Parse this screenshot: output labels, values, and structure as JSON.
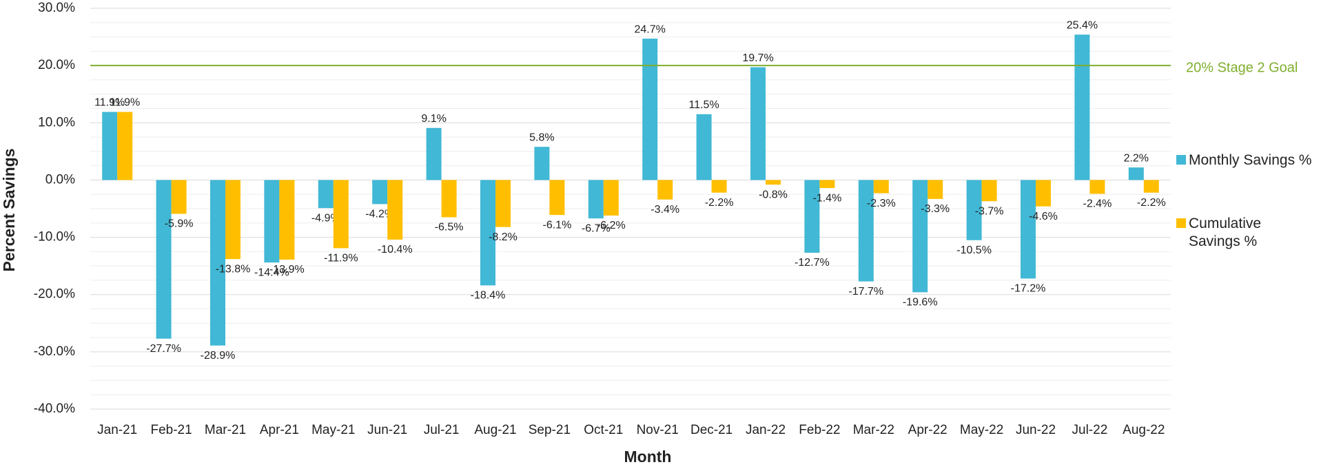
{
  "chart_data": {
    "type": "bar",
    "x_label": "Month",
    "y_label": "Percent Savings",
    "categories": [
      "Jan-21",
      "Feb-21",
      "Mar-21",
      "Apr-21",
      "May-21",
      "Jun-21",
      "Jul-21",
      "Aug-21",
      "Sep-21",
      "Oct-21",
      "Nov-21",
      "Dec-21",
      "Jan-22",
      "Feb-22",
      "Mar-22",
      "Apr-22",
      "May-22",
      "Jun-22",
      "Jul-22",
      "Aug-22"
    ],
    "series": [
      {
        "name": "Monthly Savings %",
        "color": "#41b8d5",
        "values": [
          11.9,
          -27.7,
          -28.9,
          -14.4,
          -4.9,
          -4.2,
          9.1,
          -18.4,
          5.8,
          -6.7,
          24.7,
          11.5,
          19.7,
          -12.7,
          -17.7,
          -19.6,
          -10.5,
          -17.2,
          25.4,
          2.2
        ],
        "value_labels": [
          "11.9%",
          "-27.7%",
          "-28.9%",
          "-14.4%",
          "-4.9%",
          "-4.2%",
          "9.1%",
          "-18.4%",
          "5.8%",
          "-6.7%",
          "24.7%",
          "11.5%",
          "19.7%",
          "-12.7%",
          "-17.7%",
          "-19.6%",
          "-10.5%",
          "-17.2%",
          "25.4%",
          "2.2%"
        ]
      },
      {
        "name": "Cumulative Savings %",
        "color": "#ffbf00",
        "values": [
          11.9,
          -5.9,
          -13.8,
          -13.9,
          -11.9,
          -10.4,
          -6.5,
          -8.2,
          -6.1,
          -6.2,
          -3.4,
          -2.2,
          -0.8,
          -1.4,
          -2.3,
          -3.3,
          -3.7,
          -4.6,
          -2.4,
          -2.2
        ],
        "value_labels": [
          "11.9%",
          "-5.9%",
          "-13.8%",
          "-13.9%",
          "-11.9%",
          "-10.4%",
          "-6.5%",
          "-8.2%",
          "-6.1%",
          "-6.2%",
          "-3.4%",
          "-2.2%",
          "-0.8%",
          "-1.4%",
          "-2.3%",
          "-3.3%",
          "-3.7%",
          "-4.6%",
          "-2.4%",
          "-2.2%"
        ]
      }
    ],
    "ylim": [
      -40,
      30
    ],
    "yticks": [
      {
        "value": -40,
        "label": "-40.0%"
      },
      {
        "value": -30,
        "label": "-30.0%"
      },
      {
        "value": -20,
        "label": "-20.0%"
      },
      {
        "value": -10,
        "label": "-10.0%"
      },
      {
        "value": 0,
        "label": "0.0%"
      },
      {
        "value": 10,
        "label": "10.0%"
      },
      {
        "value": 20,
        "label": "20.0%"
      },
      {
        "value": 30,
        "label": "30.0%"
      }
    ],
    "minor_yticks": [
      -37.5,
      -35,
      -32.5,
      -27.5,
      -25,
      -22.5,
      -17.5,
      -15,
      -12.5,
      -7.5,
      -5,
      -2.5,
      2.5,
      5,
      7.5,
      12.5,
      15,
      17.5,
      22.5,
      25,
      27.5
    ],
    "grid": true,
    "legend": "right",
    "reference_line": {
      "value": 20,
      "label": "20% Stage 2 Goal",
      "color": "#7fae2e"
    }
  }
}
